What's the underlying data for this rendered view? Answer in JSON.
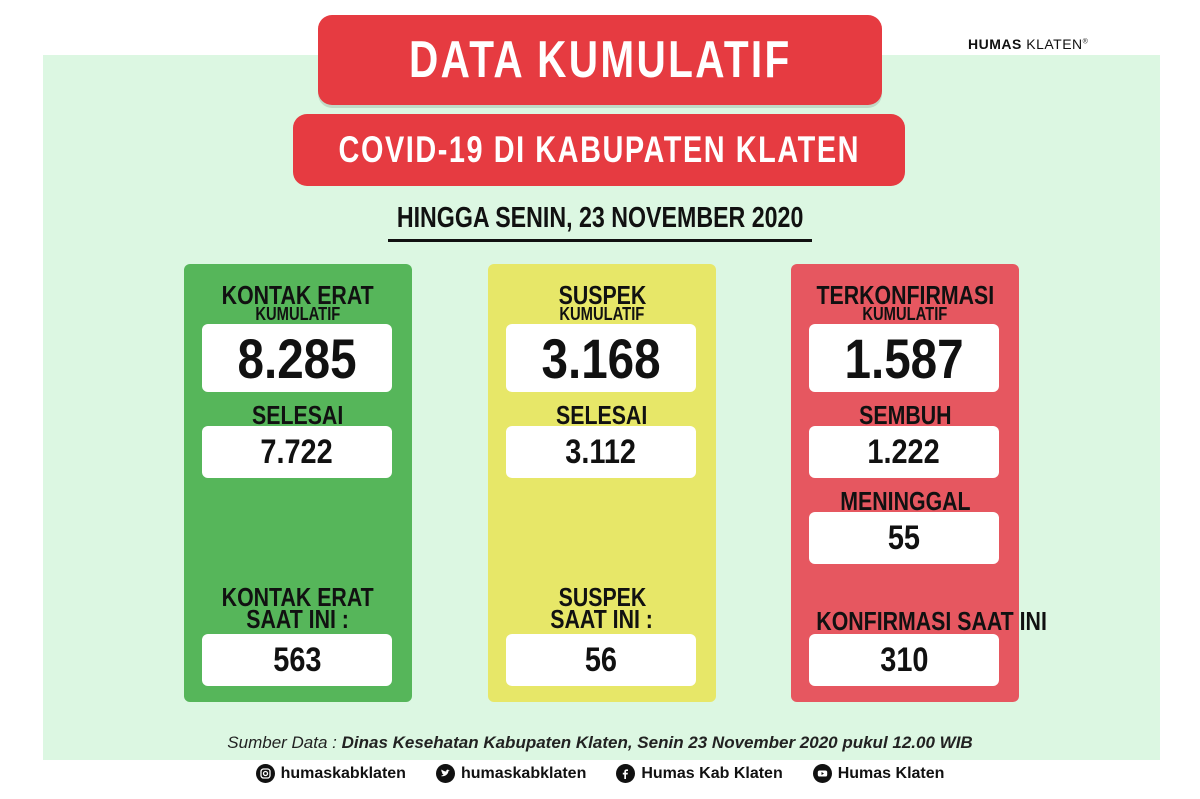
{
  "brand": {
    "bold": "HUMAS",
    "light": "KLATEN",
    "mark": "®"
  },
  "header": {
    "title": "DATA KUMULATIF",
    "subtitle": "COVID-19 DI KABUPATEN KLATEN",
    "date": "HINGGA SENIN, 23 NOVEMBER 2020"
  },
  "cards": {
    "kontak_erat": {
      "label": "KONTAK ERAT",
      "sublabel": "KUMULATIF",
      "total": "8.285",
      "done_label": "SELESAI",
      "done": "7.722",
      "current_label_1": "KONTAK ERAT",
      "current_label_2": "SAAT INI :",
      "current": "563",
      "color": "#56b65a"
    },
    "suspek": {
      "label": "SUSPEK",
      "sublabel": "KUMULATIF",
      "total": "3.168",
      "done_label": "SELESAI",
      "done": "3.112",
      "current_label_1": "SUSPEK",
      "current_label_2": "SAAT INI :",
      "current": "56",
      "color": "#e7e768"
    },
    "terkonfirmasi": {
      "label": "TERKONFIRMASI",
      "sublabel": "KUMULATIF",
      "total": "1.587",
      "recovered_label": "SEMBUH",
      "recovered": "1.222",
      "died_label": "MENINGGAL",
      "died": "55",
      "current_label": "KONFIRMASI SAAT INI",
      "current": "310",
      "color": "#e65760"
    }
  },
  "footer": {
    "source_prefix": "Sumber Data : ",
    "source": "Dinas Kesehatan Kabupaten Klaten, Senin 23 November 2020 pukul 12.00 WIB",
    "socials": [
      {
        "icon": "instagram-icon",
        "label": "humaskabklaten"
      },
      {
        "icon": "twitter-icon",
        "label": "humaskabklaten"
      },
      {
        "icon": "facebook-icon",
        "label": "Humas Kab Klaten"
      },
      {
        "icon": "youtube-icon",
        "label": "Humas Klaten"
      }
    ]
  }
}
